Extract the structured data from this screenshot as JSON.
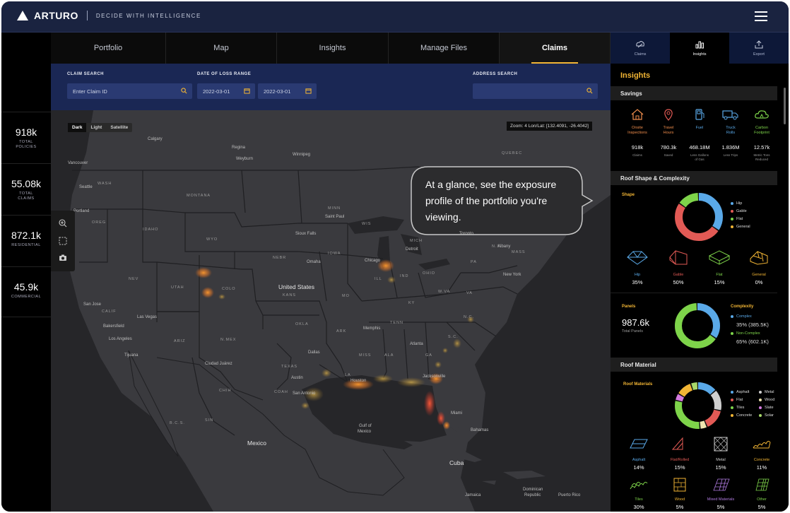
{
  "header": {
    "logo_text": "ARTURO",
    "tagline": "DECIDE WITH INTELLIGENCE"
  },
  "stats": [
    {
      "value": "918k",
      "label1": "TOTAL",
      "label2": "POLICIES"
    },
    {
      "value": "55.08k",
      "label1": "TOTAL",
      "label2": "CLAIMS"
    },
    {
      "value": "872.1k",
      "label1": "RESIDENTIAL",
      "label2": ""
    },
    {
      "value": "45.9k",
      "label1": "COMMERCIAL",
      "label2": ""
    }
  ],
  "tabs": [
    "Portfolio",
    "Map",
    "Insights",
    "Manage Files",
    "Claims"
  ],
  "active_tab": "Claims",
  "search": {
    "claim_label": "CLAIM SEARCH",
    "claim_placeholder": "Enter Claim ID",
    "date_label": "DATE OF LOSS RANGE",
    "date_from": "2022-03-01",
    "date_to": "2022-03-01",
    "address_label": "ADDRESS SEARCH",
    "address_value": ""
  },
  "map": {
    "styles": [
      "Dark",
      "Light",
      "Satellite"
    ],
    "active_style": "Dark",
    "zoom_readout": "Zoom: 4 Lon/Lat: [132.4091, -26.4042]",
    "callout": "At a glance, see the exposure profile of the portfolio you're viewing.",
    "labels": {
      "calgary": "Calgary",
      "vancouver": "Vancouver",
      "seattle": "Seattle",
      "wash": "WASH",
      "portland": "Portland",
      "oregon": "OREG",
      "idaho": "IDAHO",
      "montana": "MONTANA",
      "wyo": "WYO",
      "nev": "NEV",
      "utah": "UTAH",
      "colo": "COLO",
      "calif": "CALIF",
      "sanjose": "San Jose",
      "lasvegas": "Las Vegas",
      "bakersfield": "Bakersfield",
      "losangeles": "Los Angeles",
      "tijuana": "Tijuana",
      "ariz": "ARIZ",
      "nmex": "N.MEX",
      "ciudadjuarez": "Ciudad Juárez",
      "chih": "CHIH",
      "coah": "COAH",
      "texas": "TEXAS",
      "dallas": "Dallas",
      "austin": "Austin",
      "sanantonio": "San Antonio",
      "houston": "Houston",
      "bcs": "B.C.S.",
      "sin": "SIN",
      "mexico": "Mexico",
      "gulf1": "Gulf of",
      "gulf2": "Mexico",
      "cuba": "Cuba",
      "bahamas": "Bahamas",
      "miami": "Miami",
      "jamaica": "Jamaica",
      "dominican1": "Dominican",
      "dominican2": "Republic",
      "puertorico": "Puerto Rico",
      "winnipeg": "Winnipeg",
      "regina": "Regina",
      "weyburn": "Weyburn",
      "quebec": "QUEBEC",
      "unitedstates": "United States",
      "kans": "KANS",
      "nebr": "NEBR",
      "iowa": "IOWA",
      "omaha": "Omaha",
      "siouxfalls": "Sioux Falls",
      "saintpaul": "Saint Paul",
      "minn": "MINN",
      "wis": "WIS",
      "mich": "MICH",
      "chicago": "Chicago",
      "detroit": "Detroit",
      "ohio": "OHIO",
      "ind": "IND",
      "ill": "ILL",
      "mo": "MO",
      "ky": "KY",
      "tenn": "TENN",
      "okla": "OKLA",
      "ark": "ARK",
      "memphis": "Memphis",
      "miss": "MISS",
      "ala": "ALA",
      "ga": "GA",
      "atlanta": "Atlanta",
      "jacksonville": "Jacksonville",
      "sc": "S.C.",
      "nc": "N.C.",
      "va": "VA",
      "pa": "PA",
      "ny": "N.Y.",
      "newyork": "New York",
      "albany": "Albany",
      "toronto": "Toronto",
      "mass": "MASS",
      "wva": "W.VA",
      "la": "LA",
      "dakota": "DAK"
    }
  },
  "right_tabs": [
    {
      "label": "Claims",
      "icon": "claims-icon"
    },
    {
      "label": "Insights",
      "icon": "bar-chart-icon"
    },
    {
      "label": "Export",
      "icon": "export-icon"
    }
  ],
  "active_right_tab": "Insights",
  "insights": {
    "title": "Insights",
    "savings": {
      "heading": "Savings",
      "items": [
        {
          "label1": "Onsite",
          "label2": "Inspections",
          "value": "918k",
          "sub1": "Claims",
          "sub2": "",
          "icon": "house-icon"
        },
        {
          "label1": "Travel",
          "label2": "Hours",
          "value": "780.3k",
          "sub1": "Saved",
          "sub2": "",
          "icon": "pin-icon"
        },
        {
          "label1": "Fuel",
          "label2": "",
          "value": "468.18M",
          "sub1": "Less Gallons",
          "sub2": "of Gas",
          "icon": "fuel-icon"
        },
        {
          "label1": "Truck",
          "label2": "Rolls",
          "value": "1.836M",
          "sub1": "Less Trips",
          "sub2": "",
          "icon": "truck-icon"
        },
        {
          "label1": "Carbon",
          "label2": "Footprint",
          "value": "12.57k",
          "sub1": "Metric Tons",
          "sub2": "Reduced",
          "icon": "cloud-icon"
        }
      ]
    },
    "roof_shape": {
      "heading": "Roof Shape & Complexity",
      "shape_label": "Shape",
      "legend": [
        {
          "name": "Hip",
          "color": "#5aa9e8",
          "pct": 35
        },
        {
          "name": "Gable",
          "color": "#e25a55",
          "pct": 50
        },
        {
          "name": "Flat",
          "color": "#7ed44a",
          "pct": 15
        },
        {
          "name": "General",
          "color": "#f2b534",
          "pct": 0
        }
      ],
      "items": [
        {
          "name": "Hip",
          "pct": "35%",
          "color": "#5aa9e8"
        },
        {
          "name": "Gable",
          "pct": "50%",
          "color": "#e25a55"
        },
        {
          "name": "Flat",
          "pct": "15%",
          "color": "#7ed44a"
        },
        {
          "name": "General",
          "pct": "0%",
          "color": "#f2b534"
        }
      ],
      "panels_label": "Panels",
      "panels_value": "987.6k",
      "panels_sub": "Total Panels",
      "complexity_label": "Complexity",
      "complex_label": "Complex",
      "complex_value": "35% (385.5K)",
      "noncomplex_label": "Non-Complex",
      "noncomplex_value": "65% (602.1K)",
      "complexity": [
        {
          "name": "Complex",
          "color": "#5aa9e8",
          "pct": 35
        },
        {
          "name": "Non-Complex",
          "color": "#7ed44a",
          "pct": 65
        }
      ]
    },
    "roof_material": {
      "heading": "Roof Material",
      "sub_label": "Roof Materials",
      "legend": [
        {
          "name": "Asphalt",
          "color": "#5aa9e8",
          "pct": 14
        },
        {
          "name": "Metal",
          "color": "#cfcfcf",
          "pct": 15
        },
        {
          "name": "Flat",
          "color": "#e25a55",
          "pct": 15
        },
        {
          "name": "Wood",
          "color": "#efe6b0",
          "pct": 5
        },
        {
          "name": "Tiles",
          "color": "#7ed44a",
          "pct": 30
        },
        {
          "name": "Slate",
          "color": "#d57be0",
          "pct": 5
        },
        {
          "name": "Concrete",
          "color": "#f2b534",
          "pct": 11
        },
        {
          "name": "Solar",
          "color": "#a8d96a",
          "pct": 5
        }
      ],
      "items": [
        {
          "name": "Asphalt",
          "pct": "14%",
          "color": "#5aa9e8"
        },
        {
          "name": "Flat/Rolled",
          "pct": "15%",
          "color": "#e25a55"
        },
        {
          "name": "Metal",
          "pct": "15%",
          "color": "#cfcfcf"
        },
        {
          "name": "Concrete",
          "pct": "11%",
          "color": "#f2b534"
        },
        {
          "name": "Tiles",
          "pct": "30%",
          "color": "#7ed44a"
        },
        {
          "name": "Wood",
          "pct": "5%",
          "color": "#f2b534"
        },
        {
          "name": "Mixed Materials",
          "pct": "5%",
          "color": "#b07be0"
        },
        {
          "name": "Other",
          "pct": "5%",
          "color": "#7ed44a"
        }
      ]
    }
  }
}
